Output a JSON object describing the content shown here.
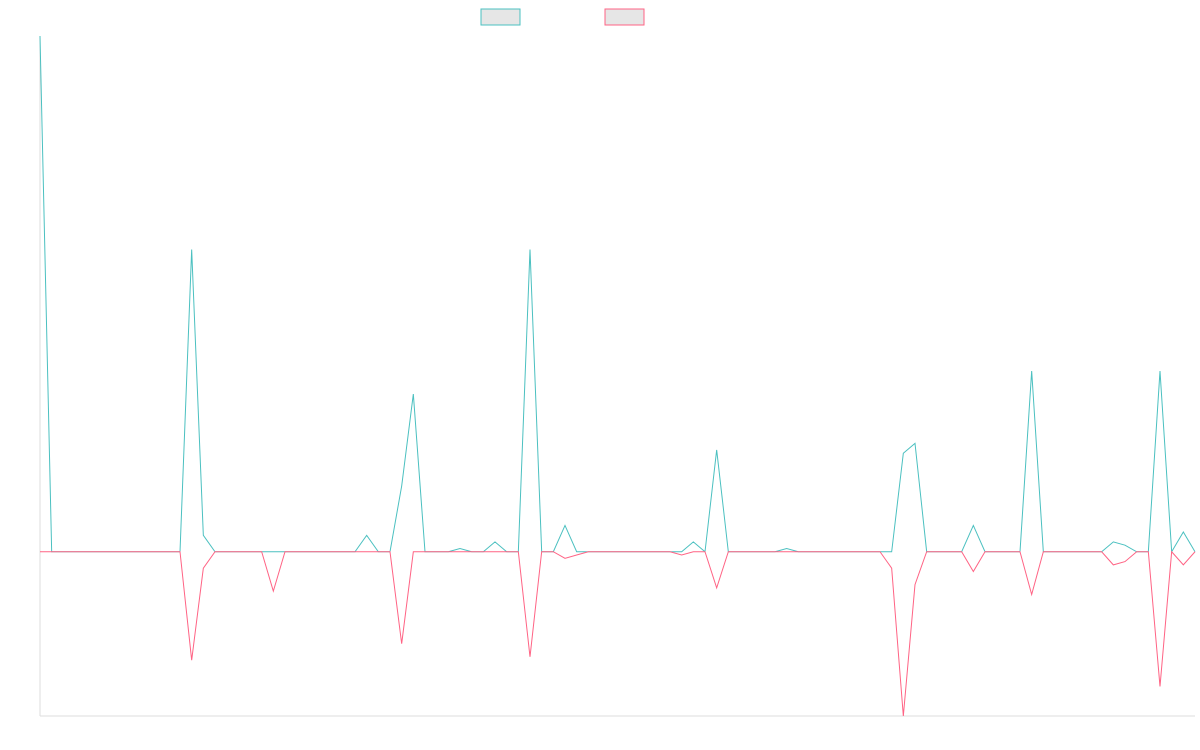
{
  "colors": {
    "series_a": "#4bc0c0",
    "series_b": "#ff6384",
    "legend_fill": "#e6e6e6",
    "axis": "#dddddd",
    "background": "#ffffff"
  },
  "chart_data": {
    "type": "line",
    "title": "",
    "xlabel": "",
    "ylabel": "",
    "grid": false,
    "legend": {
      "placement": "top-center",
      "labels_visible": false
    },
    "x_count": 100,
    "ylim": [
      -50,
      157
    ],
    "series": [
      {
        "color": "#4bc0c0",
        "values": [
          157,
          0,
          0,
          0,
          0,
          0,
          0,
          0,
          0,
          0,
          0,
          0,
          0,
          92,
          5,
          0,
          0,
          0,
          0,
          0,
          0,
          0,
          0,
          0,
          0,
          0,
          0,
          0,
          5,
          0,
          0,
          20,
          48,
          0,
          0,
          0,
          1,
          0,
          0,
          3,
          0,
          0,
          92,
          0,
          0,
          8,
          0,
          0,
          0,
          0,
          0,
          0,
          0,
          0,
          0,
          0,
          3,
          0,
          31,
          0,
          0,
          0,
          0,
          0,
          1,
          0,
          0,
          0,
          0,
          0,
          0,
          0,
          0,
          0,
          30,
          33,
          0,
          0,
          0,
          0,
          8,
          0,
          0,
          0,
          0,
          55,
          0,
          0,
          0,
          0,
          0,
          0,
          3,
          2,
          0,
          0,
          55,
          0,
          6,
          0
        ]
      },
      {
        "color": "#ff6384",
        "values": [
          0,
          0,
          0,
          0,
          0,
          0,
          0,
          0,
          0,
          0,
          0,
          0,
          0,
          -33,
          -5,
          0,
          0,
          0,
          0,
          0,
          -12,
          0,
          0,
          0,
          0,
          0,
          0,
          0,
          0,
          0,
          0,
          -28,
          0,
          0,
          0,
          0,
          0,
          0,
          0,
          0,
          0,
          0,
          -32,
          0,
          0,
          -2,
          -1,
          0,
          0,
          0,
          0,
          0,
          0,
          0,
          0,
          -1,
          0,
          0,
          -11,
          0,
          0,
          0,
          0,
          0,
          0,
          0,
          0,
          0,
          0,
          0,
          0,
          0,
          0,
          -5,
          -50,
          -10,
          0,
          0,
          0,
          0,
          -6,
          0,
          0,
          0,
          0,
          -13,
          0,
          0,
          0,
          0,
          0,
          0,
          -4,
          -3,
          0,
          0,
          -41,
          0,
          -4,
          0
        ]
      }
    ]
  }
}
